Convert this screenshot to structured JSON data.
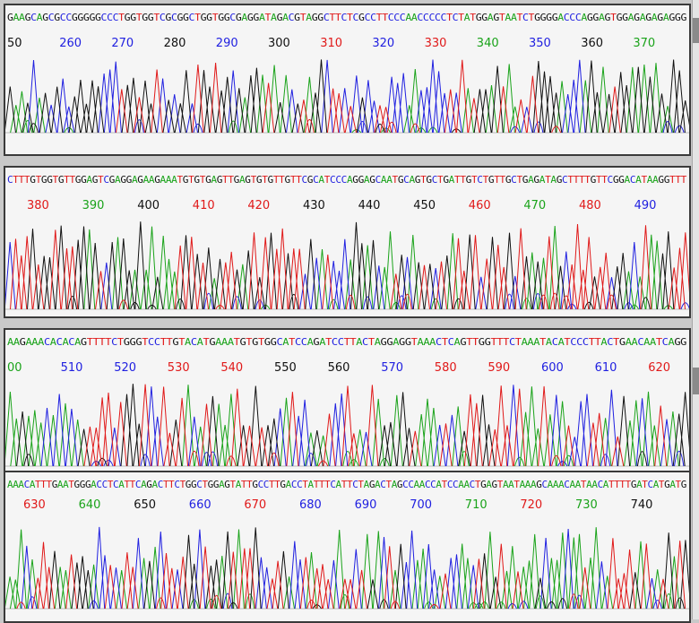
{
  "colors": {
    "A": "#1aa31a",
    "C": "#2020e0",
    "G": "#111111",
    "T": "#e01919"
  },
  "panels": [
    {
      "sequence": "GAAGCAGCGCCGGGGGCCCTGGTGGTCGCGGCTGGTGGCGAGGATAGACGTAGGCTTCTCGCCTTCCCAACCCCCTCTATGGAGTAATCTGGGGACCCAGGAGTGGAGAGAGAGGG",
      "positions": [
        {
          "text": "50",
          "base": "G"
        },
        {
          "text": "260",
          "base": "C"
        },
        {
          "text": "270",
          "base": "C"
        },
        {
          "text": "280",
          "base": "G"
        },
        {
          "text": "290",
          "base": "C"
        },
        {
          "text": "300",
          "base": "G"
        },
        {
          "text": "310",
          "base": "T"
        },
        {
          "text": "320",
          "base": "C"
        },
        {
          "text": "330",
          "base": "T"
        },
        {
          "text": "340",
          "base": "A"
        },
        {
          "text": "350",
          "base": "C"
        },
        {
          "text": "360",
          "base": "G"
        },
        {
          "text": "370",
          "base": "A"
        }
      ]
    },
    {
      "sequence": "CTTTGTGGTGTTGGAGTCGAGGAGAAGAAATGTGTGAGTTGAGTGTGTTGTTCGCATCCCAGGAGCAATGCAGTGCTGATTGTCTGTTGCTGAGATAGCTTTTGTTCGGACATAAGGTTT",
      "positions": [
        {
          "text": "380",
          "base": "T"
        },
        {
          "text": "390",
          "base": "A"
        },
        {
          "text": "400",
          "base": "G"
        },
        {
          "text": "410",
          "base": "T"
        },
        {
          "text": "420",
          "base": "T"
        },
        {
          "text": "430",
          "base": "G"
        },
        {
          "text": "440",
          "base": "G"
        },
        {
          "text": "450",
          "base": "G"
        },
        {
          "text": "460",
          "base": "T"
        },
        {
          "text": "470",
          "base": "A"
        },
        {
          "text": "480",
          "base": "T"
        },
        {
          "text": "490",
          "base": "C"
        }
      ]
    },
    {
      "sequence": "AAGAAACACACAGTTTTCTGGGTCCTTGTACATGAAATGTGTGGCATCCAGATCCTTACTAGGAGGTAAACTCAGTTGGTTTCTAAATACATCCCTTACTGAACAATCAGG",
      "positions": [
        {
          "text": "00",
          "base": "A"
        },
        {
          "text": "510",
          "base": "C"
        },
        {
          "text": "520",
          "base": "C"
        },
        {
          "text": "530",
          "base": "T"
        },
        {
          "text": "540",
          "base": "T"
        },
        {
          "text": "550",
          "base": "G"
        },
        {
          "text": "560",
          "base": "G"
        },
        {
          "text": "570",
          "base": "C"
        },
        {
          "text": "580",
          "base": "T"
        },
        {
          "text": "590",
          "base": "T"
        },
        {
          "text": "600",
          "base": "C"
        },
        {
          "text": "610",
          "base": "C"
        },
        {
          "text": "620",
          "base": "T"
        }
      ]
    },
    {
      "sequence": "AAACATTTGAATGGGACCTCATTCAGACTTCTGGCTGGAGTATTGCCTTGACCTATTTCATTCTAGACTAGCCAACCATCCAACTGAGTAATAAAGCAAACAATAACATTTTGATCATGATG",
      "positions": [
        {
          "text": "630",
          "base": "T"
        },
        {
          "text": "640",
          "base": "A"
        },
        {
          "text": "650",
          "base": "G"
        },
        {
          "text": "660",
          "base": "C"
        },
        {
          "text": "670",
          "base": "T"
        },
        {
          "text": "680",
          "base": "C"
        },
        {
          "text": "690",
          "base": "C"
        },
        {
          "text": "700",
          "base": "C"
        },
        {
          "text": "710",
          "base": "A"
        },
        {
          "text": "720",
          "base": "T"
        },
        {
          "text": "730",
          "base": "A"
        },
        {
          "text": "740",
          "base": "G"
        }
      ]
    }
  ]
}
